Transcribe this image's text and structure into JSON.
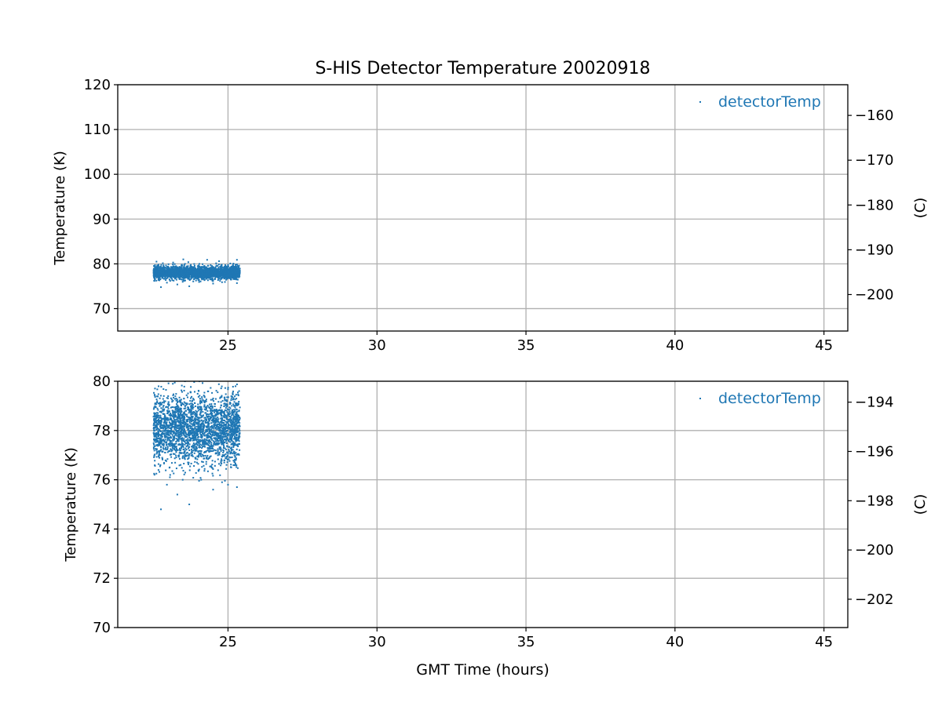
{
  "colors": {
    "series": "#1f77b4",
    "grid": "#b0b0b0",
    "axis": "#000000"
  },
  "chart_data": [
    {
      "type": "scatter",
      "title": "S-HIS Detector Temperature 20020918",
      "xlabel": "",
      "ylabel": "Temperature (K)",
      "ylabel_right": "(C)",
      "xlim": [
        21.3,
        45.8
      ],
      "ylim": [
        65,
        120
      ],
      "right_ylim": [
        -208.15,
        -153.15
      ],
      "x_ticks": [
        "25",
        "30",
        "35",
        "40",
        "45"
      ],
      "y_ticks": [
        "70",
        "80",
        "90",
        "100",
        "110",
        "120"
      ],
      "right_y_ticks": [
        "−200",
        "−190",
        "−180",
        "−170",
        "−160"
      ],
      "grid": true,
      "legend": {
        "position": "top-right",
        "entries": [
          "detectorTemp"
        ]
      },
      "series": [
        {
          "name": "detectorTemp",
          "x_range": [
            22.5,
            25.4
          ],
          "y_band": [
            76.5,
            79.6
          ],
          "outliers": [
            [
              22.75,
              74.8
            ],
            [
              23.7,
              75.0
            ],
            [
              23.3,
              75.4
            ],
            [
              24.5,
              75.6
            ],
            [
              25.3,
              75.7
            ],
            [
              22.95,
              75.8
            ],
            [
              24.8,
              75.9
            ],
            [
              22.6,
              80.5
            ],
            [
              23.5,
              81.0
            ],
            [
              24.3,
              80.9
            ],
            [
              25.3,
              80.9
            ],
            [
              24.7,
              80.6
            ]
          ]
        }
      ]
    },
    {
      "type": "scatter",
      "title": "",
      "xlabel": "GMT Time (hours)",
      "ylabel": "Temperature (K)",
      "ylabel_right": "(C)",
      "xlim": [
        21.3,
        45.8
      ],
      "ylim": [
        70,
        80
      ],
      "right_ylim": [
        -203.15,
        -193.15
      ],
      "x_ticks": [
        "25",
        "30",
        "35",
        "40",
        "45"
      ],
      "y_ticks": [
        "70",
        "72",
        "74",
        "76",
        "78",
        "80"
      ],
      "right_y_ticks": [
        "−202",
        "−200",
        "−198",
        "−196",
        "−194"
      ],
      "grid": true,
      "legend": {
        "position": "top-right",
        "entries": [
          "detectorTemp"
        ]
      },
      "series": [
        {
          "name": "detectorTemp",
          "x_range": [
            22.5,
            25.4
          ],
          "y_band": [
            76.5,
            79.6
          ],
          "outliers": [
            [
              22.75,
              74.8
            ],
            [
              23.7,
              75.0
            ],
            [
              23.3,
              75.4
            ],
            [
              24.5,
              75.6
            ],
            [
              25.3,
              75.7
            ],
            [
              24.8,
              75.9
            ],
            [
              22.95,
              75.8
            ],
            [
              23.05,
              76.1
            ],
            [
              24.1,
              76.0
            ],
            [
              25.0,
              75.8
            ]
          ]
        }
      ]
    }
  ]
}
